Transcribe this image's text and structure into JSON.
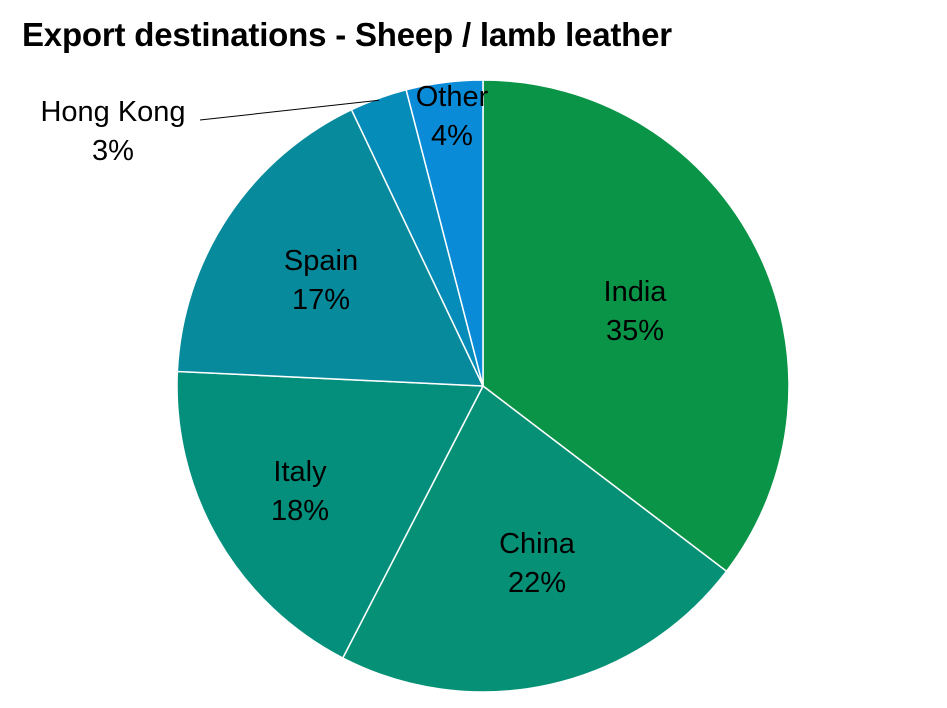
{
  "chart_data": {
    "type": "pie",
    "title": "Export destinations - Sheep / lamb leather",
    "slices": [
      {
        "label": "India",
        "value": 35,
        "value_text": "35%",
        "color": "#0a9447"
      },
      {
        "label": "China",
        "value": 22,
        "value_text": "22%",
        "color": "#069176"
      },
      {
        "label": "Italy",
        "value": 18,
        "value_text": "18%",
        "color": "#038f7c"
      },
      {
        "label": "Spain",
        "value": 17,
        "value_text": "17%",
        "color": "#078a9c"
      },
      {
        "label": "Hong Kong",
        "value": 3,
        "value_text": "3%",
        "color": "#068cb8"
      },
      {
        "label": "Other",
        "value": 4,
        "value_text": "4%",
        "color": "#0a8bd8"
      }
    ],
    "start_angle": "12 o'clock",
    "direction": "clockwise",
    "labels": "category name and percentage",
    "legend": "none"
  }
}
